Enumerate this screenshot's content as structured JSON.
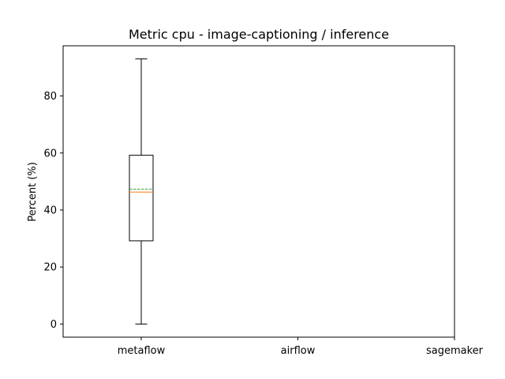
{
  "chart_data": {
    "type": "box",
    "title": "Metric cpu - image-captioning / inference",
    "xlabel": "",
    "ylabel": "Percent (%)",
    "categories": [
      "metaflow",
      "airflow",
      "sagemaker"
    ],
    "ylim": [
      -4.6,
      97.6
    ],
    "yticks": [
      0,
      20,
      40,
      60,
      80
    ],
    "grid": false,
    "series": [
      {
        "category": "metaflow",
        "whisker_low": 0,
        "q1": 29.2,
        "median": 46.3,
        "mean": 47.3,
        "q3": 59.2,
        "whisker_high": 93.0
      }
    ],
    "colors": {
      "box": "#000000",
      "median": "#ff7f0e",
      "mean": "#2ca02c"
    }
  }
}
